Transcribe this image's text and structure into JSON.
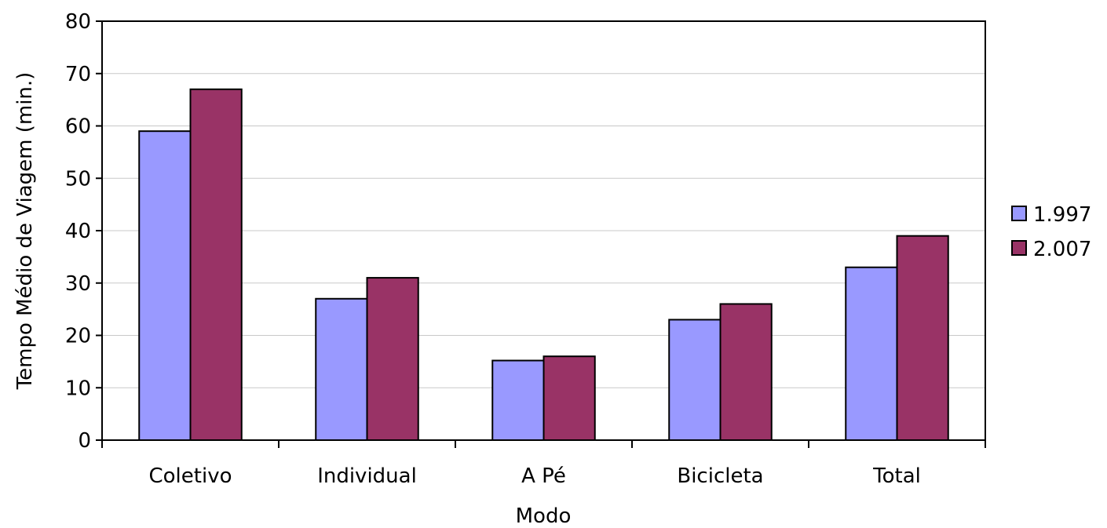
{
  "chart_data": {
    "type": "bar",
    "title": "",
    "xlabel": "Modo",
    "ylabel": "Tempo Médio de Viagem (min.)",
    "categories": [
      "Coletivo",
      "Individual",
      "A Pé",
      "Bicicleta",
      "Total"
    ],
    "series": [
      {
        "name": "1.997",
        "color": "#9999FF",
        "values": [
          59,
          27,
          15.2,
          23,
          33
        ]
      },
      {
        "name": "2.007",
        "color": "#993366",
        "values": [
          67,
          31,
          16,
          26,
          39
        ]
      }
    ],
    "ylim": [
      0,
      80
    ],
    "yticks": [
      "0",
      "10",
      "20",
      "30",
      "40",
      "50",
      "60",
      "70",
      "80"
    ],
    "grid": true,
    "legend_position": "right"
  }
}
